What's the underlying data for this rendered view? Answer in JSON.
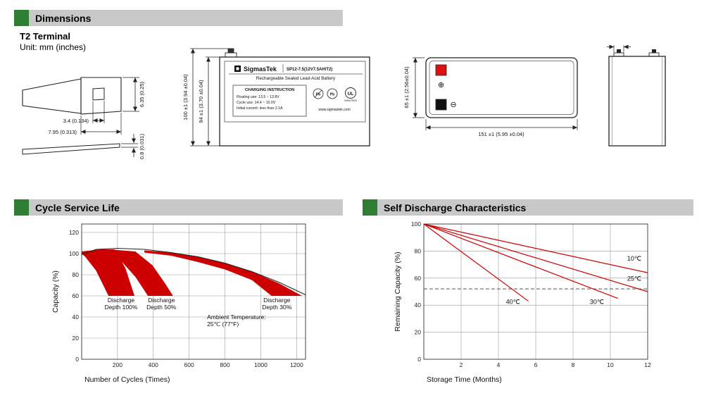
{
  "page": {
    "sections": {
      "dimensions": "Dimensions",
      "cycle": "Cycle Service Life",
      "self_discharge": "Self Discharge Characteristics"
    },
    "terminal": {
      "title": "T2 Terminal",
      "unit": "Unit: mm (inches)"
    }
  },
  "drawings": {
    "terminal_detail": {
      "hole_width": "3.4 (0.134)",
      "tab_width": "7.95 (0.313)",
      "tab_height": "6.35 (0.25)",
      "thickness": "0.8 (0.031)"
    },
    "front_view": {
      "height_overall": "100 ±1 (3.94 ±0.04)",
      "height_body": "94 ±1 (3.70 ±0.04)"
    },
    "top_view": {
      "width": "65 ±1 (2.56±0.04)",
      "length": "151 ±1 (5.95 ±0.04)",
      "plus": "⊕",
      "minus": "⊖"
    },
    "label": {
      "brand": "SigmasTek",
      "model": "SP12-7.5(12V7.5AH/T2)",
      "type_line": "Rechargeable Sealed Lead-Acid Battery",
      "charging_title": "CHARGING INSTRUCTION",
      "charging_line1": "Floating use: 13.5 ~ 13.8V",
      "charging_line2": "Cycle use: 14.4 ~ 15.0V",
      "charging_line3": "Initial current: less than 2.1A",
      "pb": "Pb",
      "ul": "UL",
      "ul_code": "MH47929",
      "website": "www.sigmastek.com"
    }
  },
  "colors": {
    "accent_green": "#2e7d32",
    "header_bg": "#c8c8c8",
    "series_red": "#cc0000",
    "terminal_red": "#dd1111",
    "terminal_black": "#111111"
  },
  "chart_data": [
    {
      "name": "cycle-service-life",
      "type": "area",
      "title": "Cycle Service Life",
      "xlabel": "Number of Cycles (Times)",
      "ylabel": "Capacity (%)",
      "xlim": [
        0,
        1250
      ],
      "ylim": [
        0,
        128
      ],
      "xticks": [
        200,
        400,
        600,
        800,
        1000,
        1200
      ],
      "yticks": [
        0,
        20,
        40,
        60,
        80,
        100,
        120
      ],
      "grid": true,
      "line_color": "#cc0000",
      "envelope": [
        [
          0,
          99
        ],
        [
          80,
          104
        ],
        [
          200,
          105
        ],
        [
          350,
          104
        ],
        [
          500,
          101
        ],
        [
          650,
          97
        ],
        [
          800,
          91
        ],
        [
          950,
          83
        ],
        [
          1100,
          73
        ],
        [
          1250,
          61
        ]
      ],
      "bands": [
        {
          "name": "Discharge Depth 100%",
          "points": [
            [
              0,
              102
            ],
            [
              100,
              104
            ],
            [
              185,
              104
            ],
            [
              245,
              86
            ],
            [
              295,
              60
            ],
            [
              150,
              60
            ],
            [
              80,
              84
            ],
            [
              20,
              97
            ],
            [
              0,
              100
            ]
          ]
        },
        {
          "name": "Discharge Depth 50%",
          "points": [
            [
              150,
              104
            ],
            [
              300,
              102
            ],
            [
              395,
              89
            ],
            [
              465,
              72
            ],
            [
              510,
              60
            ],
            [
              370,
              60
            ],
            [
              300,
              78
            ],
            [
              215,
              94
            ],
            [
              150,
              102
            ]
          ]
        },
        {
          "name": "Discharge Depth 30%",
          "points": [
            [
              350,
              103
            ],
            [
              500,
              101
            ],
            [
              650,
              97
            ],
            [
              800,
              91
            ],
            [
              950,
              83
            ],
            [
              1100,
              72
            ],
            [
              1230,
              60
            ],
            [
              1060,
              60
            ],
            [
              950,
              75
            ],
            [
              800,
              85
            ],
            [
              650,
              92
            ],
            [
              500,
              98
            ],
            [
              350,
              101
            ]
          ]
        }
      ],
      "annotations": [
        {
          "lines": [
            "Discharge",
            "Depth 100%"
          ],
          "x": 220,
          "y": 54
        },
        {
          "lines": [
            "Discharge",
            "Depth 50%"
          ],
          "x": 445,
          "y": 54
        },
        {
          "lines": [
            "Discharge",
            "Depth 30%"
          ],
          "x": 1090,
          "y": 54
        },
        {
          "lines": [
            "Ambient Temperature:",
            "25℃ (77°F)"
          ],
          "x": 700,
          "y": 38,
          "align": "start"
        }
      ]
    },
    {
      "name": "self-discharge",
      "type": "line",
      "title": "Self Discharge Characteristics",
      "xlabel": "Storage Time (Months)",
      "ylabel": "Remaining Capacity (%)",
      "xlim": [
        0,
        12
      ],
      "ylim": [
        0,
        100
      ],
      "xticks": [
        2,
        4,
        6,
        8,
        10,
        12
      ],
      "yticks": [
        0,
        20,
        40,
        60,
        80,
        100
      ],
      "grid": true,
      "dashed_y": 52,
      "line_color": "#cc0000",
      "lines": [
        {
          "name": "10℃",
          "points": [
            [
              0,
              100
            ],
            [
              12,
              64
            ]
          ],
          "label_x": 10.9,
          "label_y": 73
        },
        {
          "name": "25℃",
          "points": [
            [
              0,
              100
            ],
            [
              12,
              50
            ]
          ],
          "label_x": 10.9,
          "label_y": 58
        },
        {
          "name": "30℃",
          "points": [
            [
              0,
              100
            ],
            [
              10.4,
              45
            ]
          ],
          "label_x": 8.9,
          "label_y": 41
        },
        {
          "name": "40℃",
          "points": [
            [
              0,
              100
            ],
            [
              5.6,
              43
            ]
          ],
          "label_x": 4.4,
          "label_y": 41
        }
      ]
    }
  ]
}
